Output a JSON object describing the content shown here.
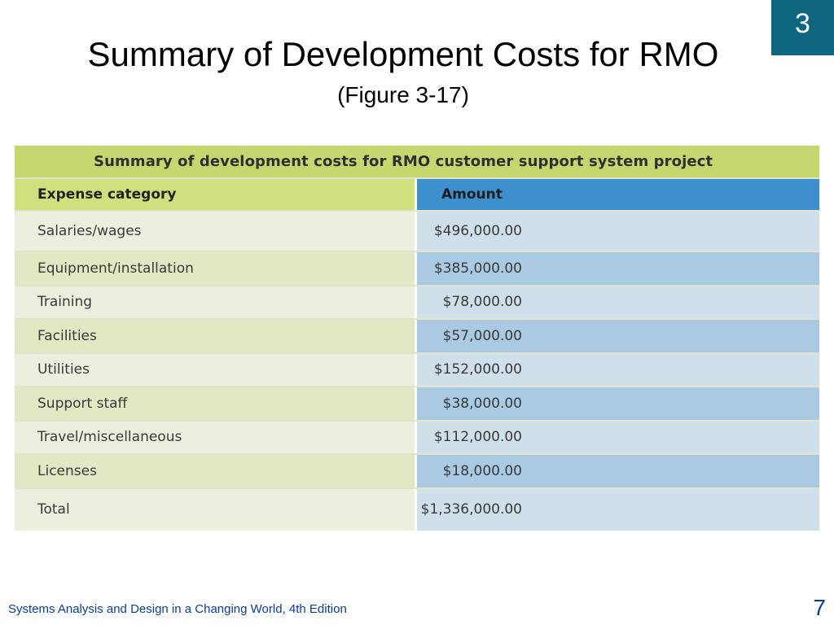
{
  "slide": {
    "chapter_number": "3",
    "title": "Summary of Development Costs for RMO",
    "subtitle": "(Figure 3-17)",
    "footer": "Systems Analysis and Design in a Changing World, 4th Edition",
    "page_number": "7"
  },
  "table": {
    "caption": "Summary of development costs for RMO customer support system project",
    "headers": {
      "category": "Expense category",
      "amount": "Amount"
    },
    "rows": [
      {
        "category": "Salaries/wages",
        "amount": "$496,000.00"
      },
      {
        "category": "Equipment/installation",
        "amount": "$385,000.00"
      },
      {
        "category": "Training",
        "amount": "$78,000.00"
      },
      {
        "category": "Facilities",
        "amount": "$57,000.00"
      },
      {
        "category": "Utilities",
        "amount": "$152,000.00"
      },
      {
        "category": "Support staff",
        "amount": "$38,000.00"
      },
      {
        "category": "Travel/miscellaneous",
        "amount": "$112,000.00"
      },
      {
        "category": "Licenses",
        "amount": "$18,000.00"
      },
      {
        "category": "Total",
        "amount": "$1,336,000.00"
      }
    ]
  },
  "colors": {
    "badge": "#0e6681",
    "caption_bar": "#c5d86f",
    "header_left": "#d0e07e",
    "header_right": "#3d8fce",
    "footer_text": "#0a3d91"
  }
}
